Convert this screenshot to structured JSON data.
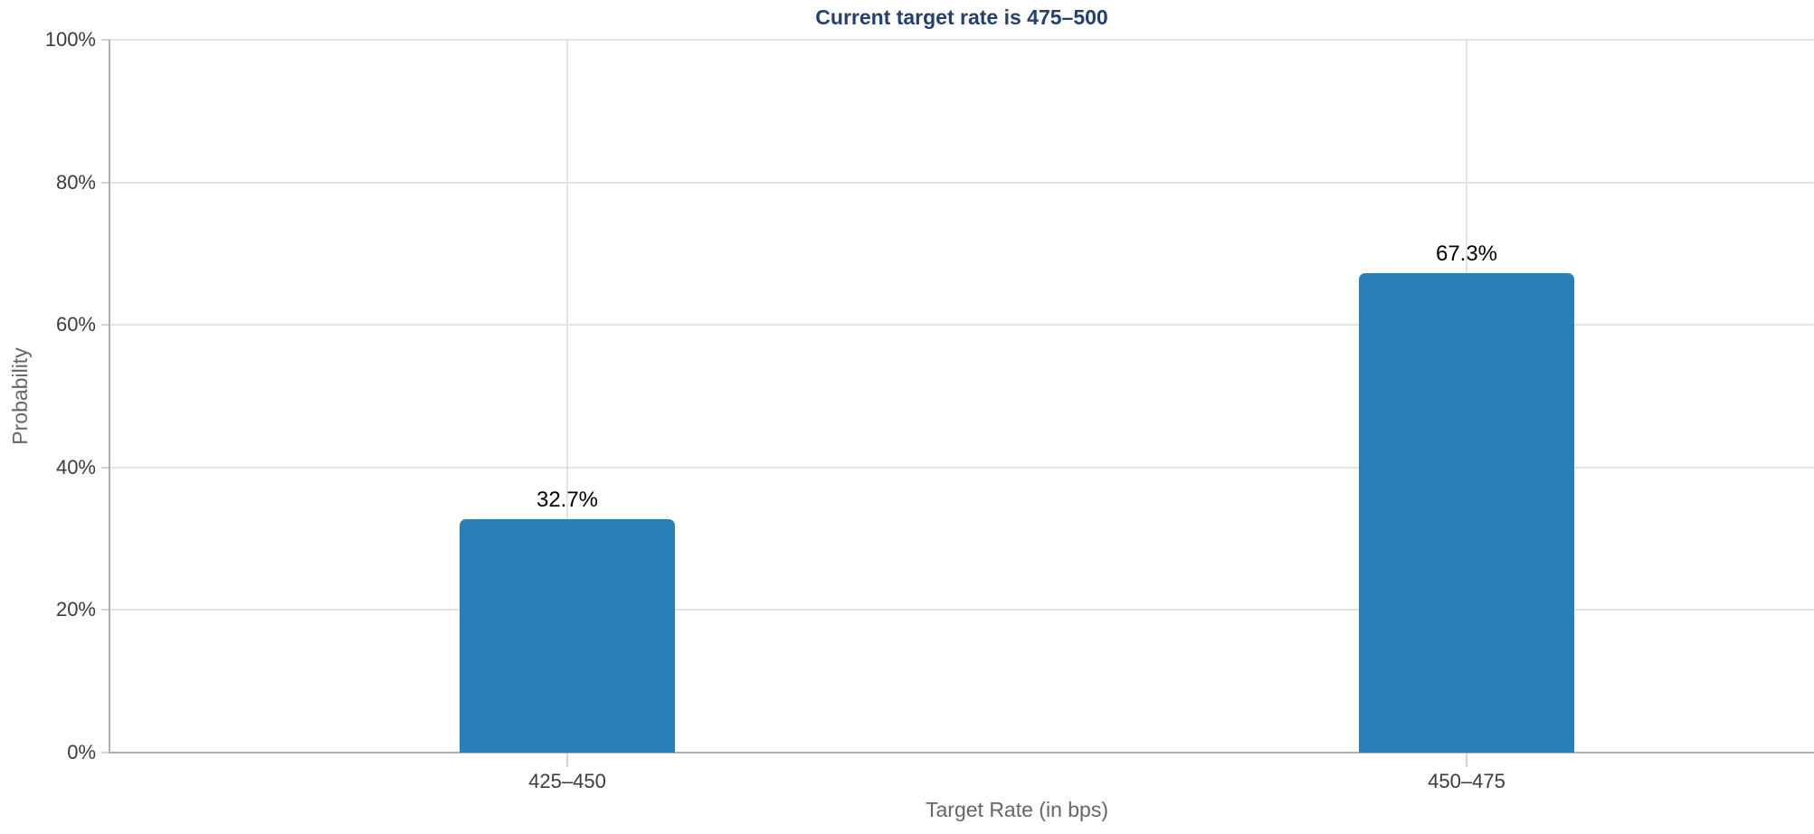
{
  "chart_data": {
    "type": "bar",
    "title": "Current target rate is 475–500",
    "categories": [
      "425–450",
      "450–475"
    ],
    "values": [
      32.7,
      67.3
    ],
    "value_labels": [
      "32.7%",
      "67.3%"
    ],
    "xlabel": "Target Rate (in bps)",
    "ylabel": "Probability",
    "ylim": [
      0,
      100
    ],
    "ytick_interval": 20,
    "yticks": [
      "0%",
      "20%",
      "40%",
      "60%",
      "80%",
      "100%"
    ],
    "grid": true,
    "legend_position": "none",
    "colors": {
      "bar": "#2980b9",
      "title": "#24406e",
      "axis_line": "#aeaeae",
      "gridline": "#e4e4e4",
      "tick": "#d4d4d4",
      "tick_label": "#3c3c3c",
      "axis_title": "#666666",
      "value_label": "#000000",
      "background": "#ffffff"
    }
  }
}
